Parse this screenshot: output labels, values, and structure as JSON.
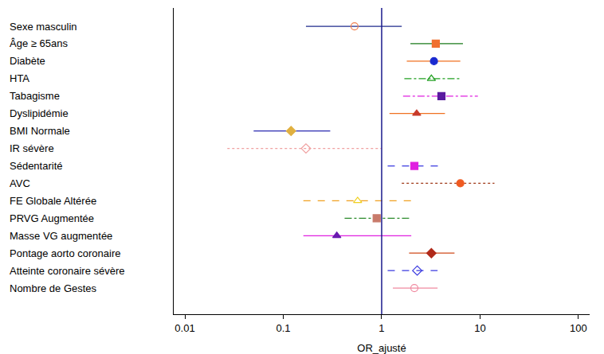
{
  "chart_data": {
    "type": "forest",
    "x_label": "OR_ajusté",
    "log": "x",
    "grid": false,
    "tick_labels": "x",
    "xlim": [
      0.0077,
      130
    ],
    "xticks": [
      0.01,
      0.1,
      1,
      10,
      100
    ],
    "reference_line": 1,
    "categories": [
      "Sexe masculin",
      "Âge ≥ 65ans",
      "Diabète",
      "HTA",
      "Tabagisme",
      "Dyslipidémie",
      "BMI Normale",
      "IR sévère",
      "Sédentarité",
      "AVC",
      "FE Globale Altérée",
      "PRVG Augmentée",
      "Masse VG augmentée",
      "Pontage aorto coronaire",
      "Atteinte coronaire sévère",
      "Nombre de Gestes"
    ],
    "values": [
      0.53,
      3.55,
      3.4,
      3.2,
      4.05,
      2.27,
      0.12,
      0.17,
      2.15,
      6.3,
      0.57,
      0.89,
      0.35,
      3.2,
      2.3,
      2.15
    ],
    "ci_low": [
      0.17,
      1.96,
      1.8,
      1.7,
      1.65,
      1.2,
      0.05,
      0.027,
      1.15,
      1.6,
      0.16,
      0.42,
      0.16,
      1.9,
      1.15,
      1.3
    ],
    "ci_high": [
      1.6,
      6.7,
      6.3,
      6.2,
      9.5,
      4.4,
      0.3,
      1.0,
      3.8,
      14,
      2.0,
      1.9,
      2.0,
      5.5,
      3.7,
      3.7
    ],
    "colors": [
      [
        "#1f2a8c",
        "#f08050"
      ],
      [
        "#1a7a1a",
        "#f07030"
      ],
      [
        "#f07020",
        "#1a2ad0"
      ],
      [
        "#22a022",
        "#22a022"
      ],
      [
        "#e020e0",
        "#5a1aa0"
      ],
      [
        "#f07020",
        "#c83a2a"
      ],
      [
        "#2a2ab0",
        "#e0b040"
      ],
      [
        "#f0a0a0",
        "#f0a0a0"
      ],
      [
        "#3a3ae0",
        "#e020e0"
      ],
      [
        "#a03a1a",
        "#f05a20"
      ],
      [
        "#f0a020",
        "#f0d020"
      ],
      [
        "#2a8a2a",
        "#c87a6a"
      ],
      [
        "#e020e0",
        "#6a1ab0"
      ],
      [
        "#d04a1a",
        "#b02a1a"
      ],
      [
        "#3a3ae0",
        "#3a3ae0"
      ],
      [
        "#f08aa0",
        "#f08aa0"
      ]
    ],
    "marker": [
      "circle-open",
      "square",
      "circle",
      "triangle-up-open",
      "square",
      "triangle-up",
      "diamond",
      "diamond-open",
      "square",
      "circle",
      "triangle-up-open",
      "square",
      "triangle-up",
      "diamond",
      "diamond-open",
      "circle-open"
    ],
    "line_style": [
      "solid",
      "solid",
      "solid",
      "dashdot",
      "dashdot",
      "solid",
      "solid",
      "dot",
      "dash",
      "dot",
      "dash",
      "dashdot",
      "solid",
      "solid",
      "dash",
      "solid"
    ]
  }
}
